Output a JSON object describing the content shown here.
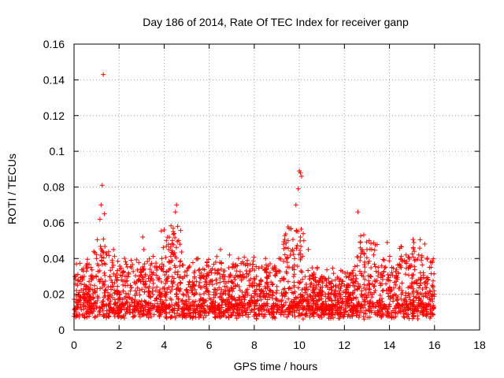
{
  "chart_data": {
    "type": "scatter",
    "title": "Day 186 of 2014, Rate Of TEC Index for receiver ganp",
    "xlabel": "GPS time / hours",
    "ylabel": "ROTI / TECUs",
    "xlim": [
      0,
      18
    ],
    "ylim": [
      0,
      0.16
    ],
    "xticks": [
      "0",
      "2",
      "4",
      "6",
      "8",
      "10",
      "12",
      "14",
      "16",
      "18"
    ],
    "yticks": [
      "0",
      "0.02",
      "0.04",
      "0.06",
      "0.08",
      "0.1",
      "0.12",
      "0.14",
      "0.16"
    ],
    "grid": true,
    "marker": "+",
    "color": "#ff0000",
    "series": [
      {
        "name": "ROTI",
        "x": [
          0.05,
          0.15,
          0.3,
          0.45,
          0.6,
          0.75,
          0.9,
          1.0,
          1.1,
          1.15,
          1.2,
          1.25,
          1.3,
          1.35,
          1.45,
          1.6,
          1.75,
          1.9,
          2.1,
          2.3,
          2.5,
          2.7,
          2.9,
          3.05,
          3.1,
          3.3,
          3.5,
          3.7,
          3.9,
          4.0,
          4.1,
          4.2,
          4.3,
          4.4,
          4.5,
          4.55,
          4.6,
          4.7,
          4.9,
          5.1,
          5.3,
          5.5,
          5.7,
          5.9,
          6.1,
          6.3,
          6.5,
          6.7,
          6.9,
          7.1,
          7.3,
          7.5,
          7.7,
          7.9,
          8.1,
          8.3,
          8.5,
          8.7,
          8.9,
          9.1,
          9.3,
          9.5,
          9.7,
          9.85,
          9.95,
          10.0,
          10.05,
          10.1,
          10.2,
          10.4,
          10.6,
          10.8,
          11.0,
          11.2,
          11.4,
          11.6,
          11.8,
          12.0,
          12.2,
          12.4,
          12.6,
          12.7,
          12.8,
          12.9,
          13.0,
          13.1,
          13.3,
          13.5,
          13.7,
          13.9,
          14.1,
          14.3,
          14.5,
          14.7,
          14.9,
          15.1,
          15.3,
          15.5,
          15.7,
          15.9,
          16.0
        ],
        "y": [
          0.012,
          0.025,
          0.018,
          0.03,
          0.02,
          0.035,
          0.015,
          0.04,
          0.028,
          0.062,
          0.07,
          0.081,
          0.143,
          0.065,
          0.042,
          0.03,
          0.045,
          0.02,
          0.028,
          0.018,
          0.025,
          0.015,
          0.03,
          0.052,
          0.045,
          0.022,
          0.028,
          0.035,
          0.04,
          0.056,
          0.05,
          0.045,
          0.038,
          0.055,
          0.066,
          0.07,
          0.058,
          0.048,
          0.03,
          0.035,
          0.025,
          0.04,
          0.03,
          0.038,
          0.032,
          0.028,
          0.045,
          0.03,
          0.042,
          0.035,
          0.04,
          0.03,
          0.036,
          0.025,
          0.03,
          0.028,
          0.04,
          0.032,
          0.035,
          0.04,
          0.048,
          0.05,
          0.045,
          0.07,
          0.079,
          0.089,
          0.088,
          0.086,
          0.05,
          0.045,
          0.03,
          0.035,
          0.03,
          0.025,
          0.02,
          0.018,
          0.022,
          0.025,
          0.02,
          0.03,
          0.066,
          0.049,
          0.044,
          0.038,
          0.045,
          0.05,
          0.042,
          0.035,
          0.03,
          0.049,
          0.035,
          0.03,
          0.04,
          0.038,
          0.036,
          0.044,
          0.042,
          0.032,
          0.028,
          0.025,
          0.02
        ]
      }
    ]
  }
}
